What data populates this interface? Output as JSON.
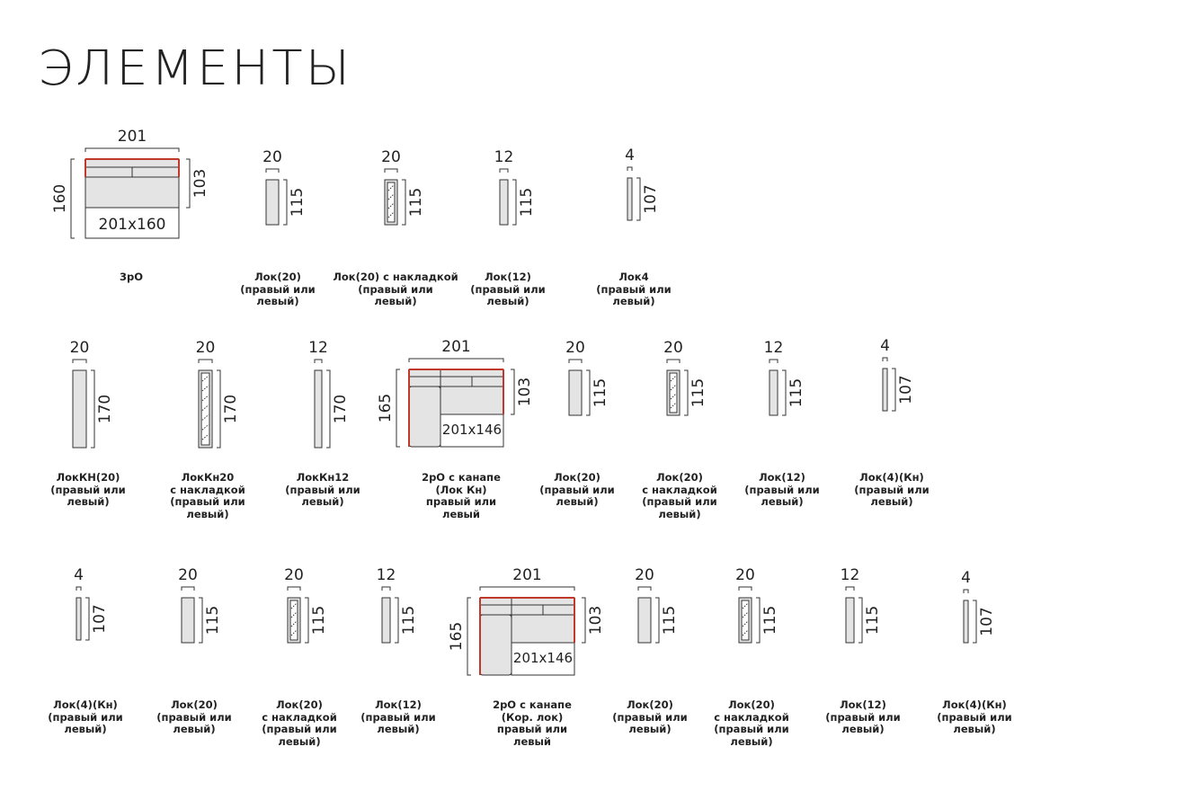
{
  "title": "ЭЛЕМЕНТЫ",
  "elements": [
    {
      "kind": "sofa",
      "top": "201",
      "left": "160",
      "right": "103",
      "inner": "201x160",
      "caption": "3рО"
    },
    {
      "kind": "lock",
      "variant": "plain",
      "top": "20",
      "side": "115",
      "caption": "Лок(20)\n(правый или\nлевый)"
    },
    {
      "kind": "lock",
      "variant": "overlay",
      "top": "20",
      "side": "115",
      "caption": "Лок(20) с накладкой\n(правый или\nлевый)"
    },
    {
      "kind": "lock",
      "variant": "plain",
      "top": "12",
      "side": "115",
      "caption": "Лок(12)\n(правый или\nлевый)"
    },
    {
      "kind": "lock",
      "variant": "thin",
      "top": "4",
      "side": "107",
      "caption": "Лок4\n(правый или\nлевый)"
    },
    {
      "kind": "lock",
      "variant": "plain",
      "top": "20",
      "side": "170",
      "caption": "ЛокКН(20)\n(правый или\nлевый)"
    },
    {
      "kind": "lock",
      "variant": "overlay",
      "top": "20",
      "side": "170",
      "caption": "ЛокКн20\nс накладкой\n(правый или\nлевый)"
    },
    {
      "kind": "lock",
      "variant": "plain",
      "top": "12",
      "side": "170",
      "caption": "ЛокКн12\n(правый или\nлевый)"
    },
    {
      "kind": "corner",
      "top": "201",
      "left": "165",
      "right": "103",
      "inner": "201x146",
      "caption": "2рО с канапе\n(Лок Кн)\nправый или\nлевый"
    },
    {
      "kind": "lock",
      "variant": "plain",
      "top": "20",
      "side": "115",
      "caption": "Лок(20)\n(правый или\nлевый)"
    },
    {
      "kind": "lock",
      "variant": "overlay",
      "top": "20",
      "side": "115",
      "caption": "Лок(20)\nс накладкой\n(правый или\nлевый)"
    },
    {
      "kind": "lock",
      "variant": "plain",
      "top": "12",
      "side": "115",
      "caption": "Лок(12)\n(правый или\nлевый)"
    },
    {
      "kind": "lock",
      "variant": "thin",
      "top": "4",
      "side": "107",
      "caption": "Лок(4)(Кн)\n(правый или\nлевый)"
    },
    {
      "kind": "lock",
      "variant": "thin",
      "top": "4",
      "side": "107",
      "caption": "Лок(4)(Кн)\n(правый или\nлевый)"
    },
    {
      "kind": "lock",
      "variant": "plain",
      "top": "20",
      "side": "115",
      "caption": "Лок(20)\n(правый или\nлевый)"
    },
    {
      "kind": "lock",
      "variant": "overlay",
      "top": "20",
      "side": "115",
      "caption": "Лок(20)\nс накладкой\n(правый или\nлевый)"
    },
    {
      "kind": "lock",
      "variant": "plain",
      "top": "12",
      "side": "115",
      "caption": "Лок(12)\n(правый или\nлевый)"
    },
    {
      "kind": "corner",
      "top": "201",
      "left": "165",
      "right": "103",
      "inner": "201x146",
      "caption": "2рО с канапе\n(Кор. лок)\nправый или\nлевый"
    },
    {
      "kind": "lock",
      "variant": "plain",
      "top": "20",
      "side": "115",
      "caption": "Лок(20)\n(правый или\nлевый)"
    },
    {
      "kind": "lock",
      "variant": "overlay",
      "top": "20",
      "side": "115",
      "caption": "Лок(20)\nс накладкой\n(правый или\nлевый)"
    },
    {
      "kind": "lock",
      "variant": "plain",
      "top": "12",
      "side": "115",
      "caption": "Лок(12)\n(правый или\nлевый)"
    },
    {
      "kind": "lock",
      "variant": "thin",
      "top": "4",
      "side": "107",
      "caption": "Лок(4)(Кн)\n(правый или\nлевый)"
    }
  ],
  "colors": {
    "fill": "#e4e4e4",
    "stroke": "#333333",
    "accent": "#c0392b"
  }
}
